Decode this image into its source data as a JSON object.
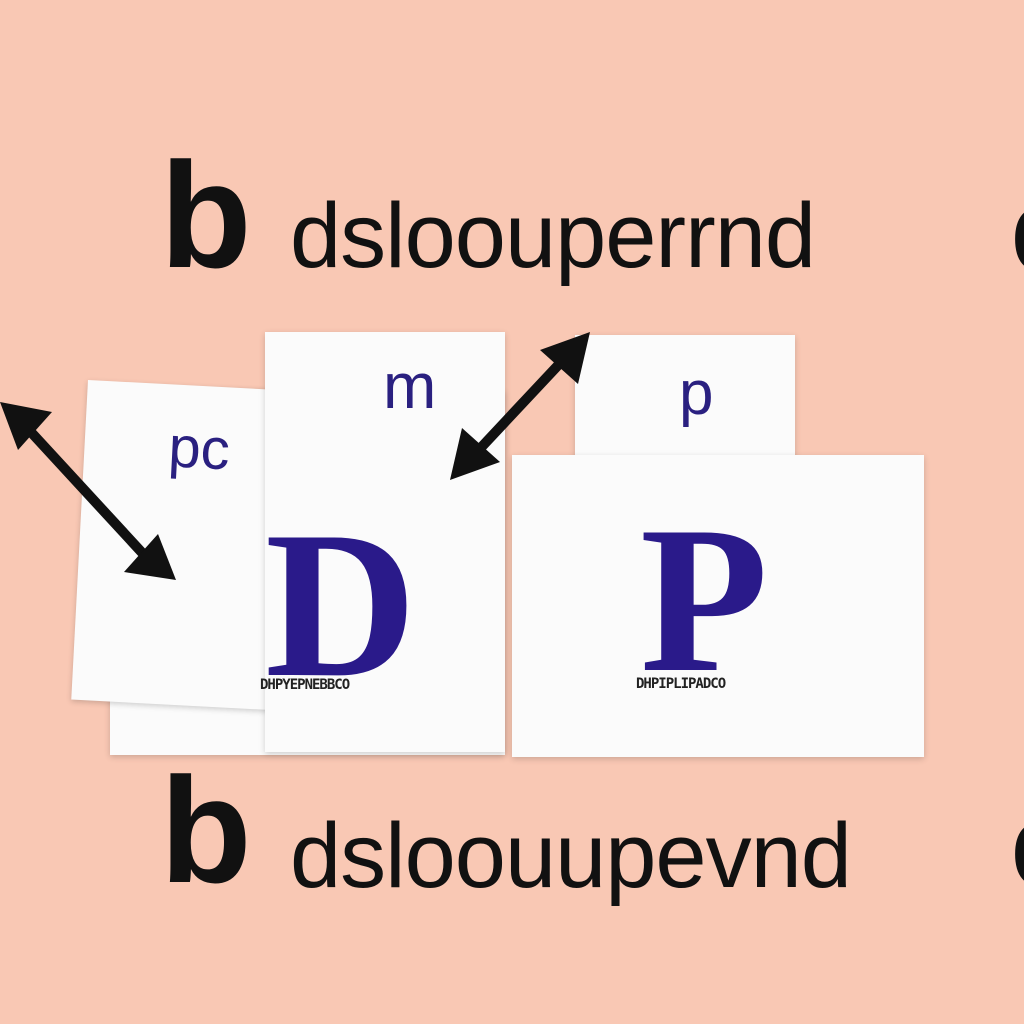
{
  "top_row": {
    "big_letter": "b",
    "word": "dsloouperrnd",
    "edge_letter": "c"
  },
  "cards": {
    "left_back": {
      "small_label": "pc"
    },
    "left_middle": {
      "small_label": "m",
      "main_letter": "D",
      "caption": "DHPYEPNEBBCO"
    },
    "right_top": {
      "small_label": "p"
    },
    "right_front": {
      "main_letter": "P",
      "caption": "DHPIPLIPADCO"
    }
  },
  "bottom_row": {
    "big_letter": "b",
    "word": "dsloouupevnd",
    "edge_letter": "c"
  },
  "colors": {
    "background": "#f9c8b4",
    "ink": "#111111",
    "letter_blue": "#2a1a8a",
    "card": "#fbfbfb"
  },
  "icons": [
    "double-headed-arrow-icon",
    "double-headed-arrow-icon"
  ]
}
